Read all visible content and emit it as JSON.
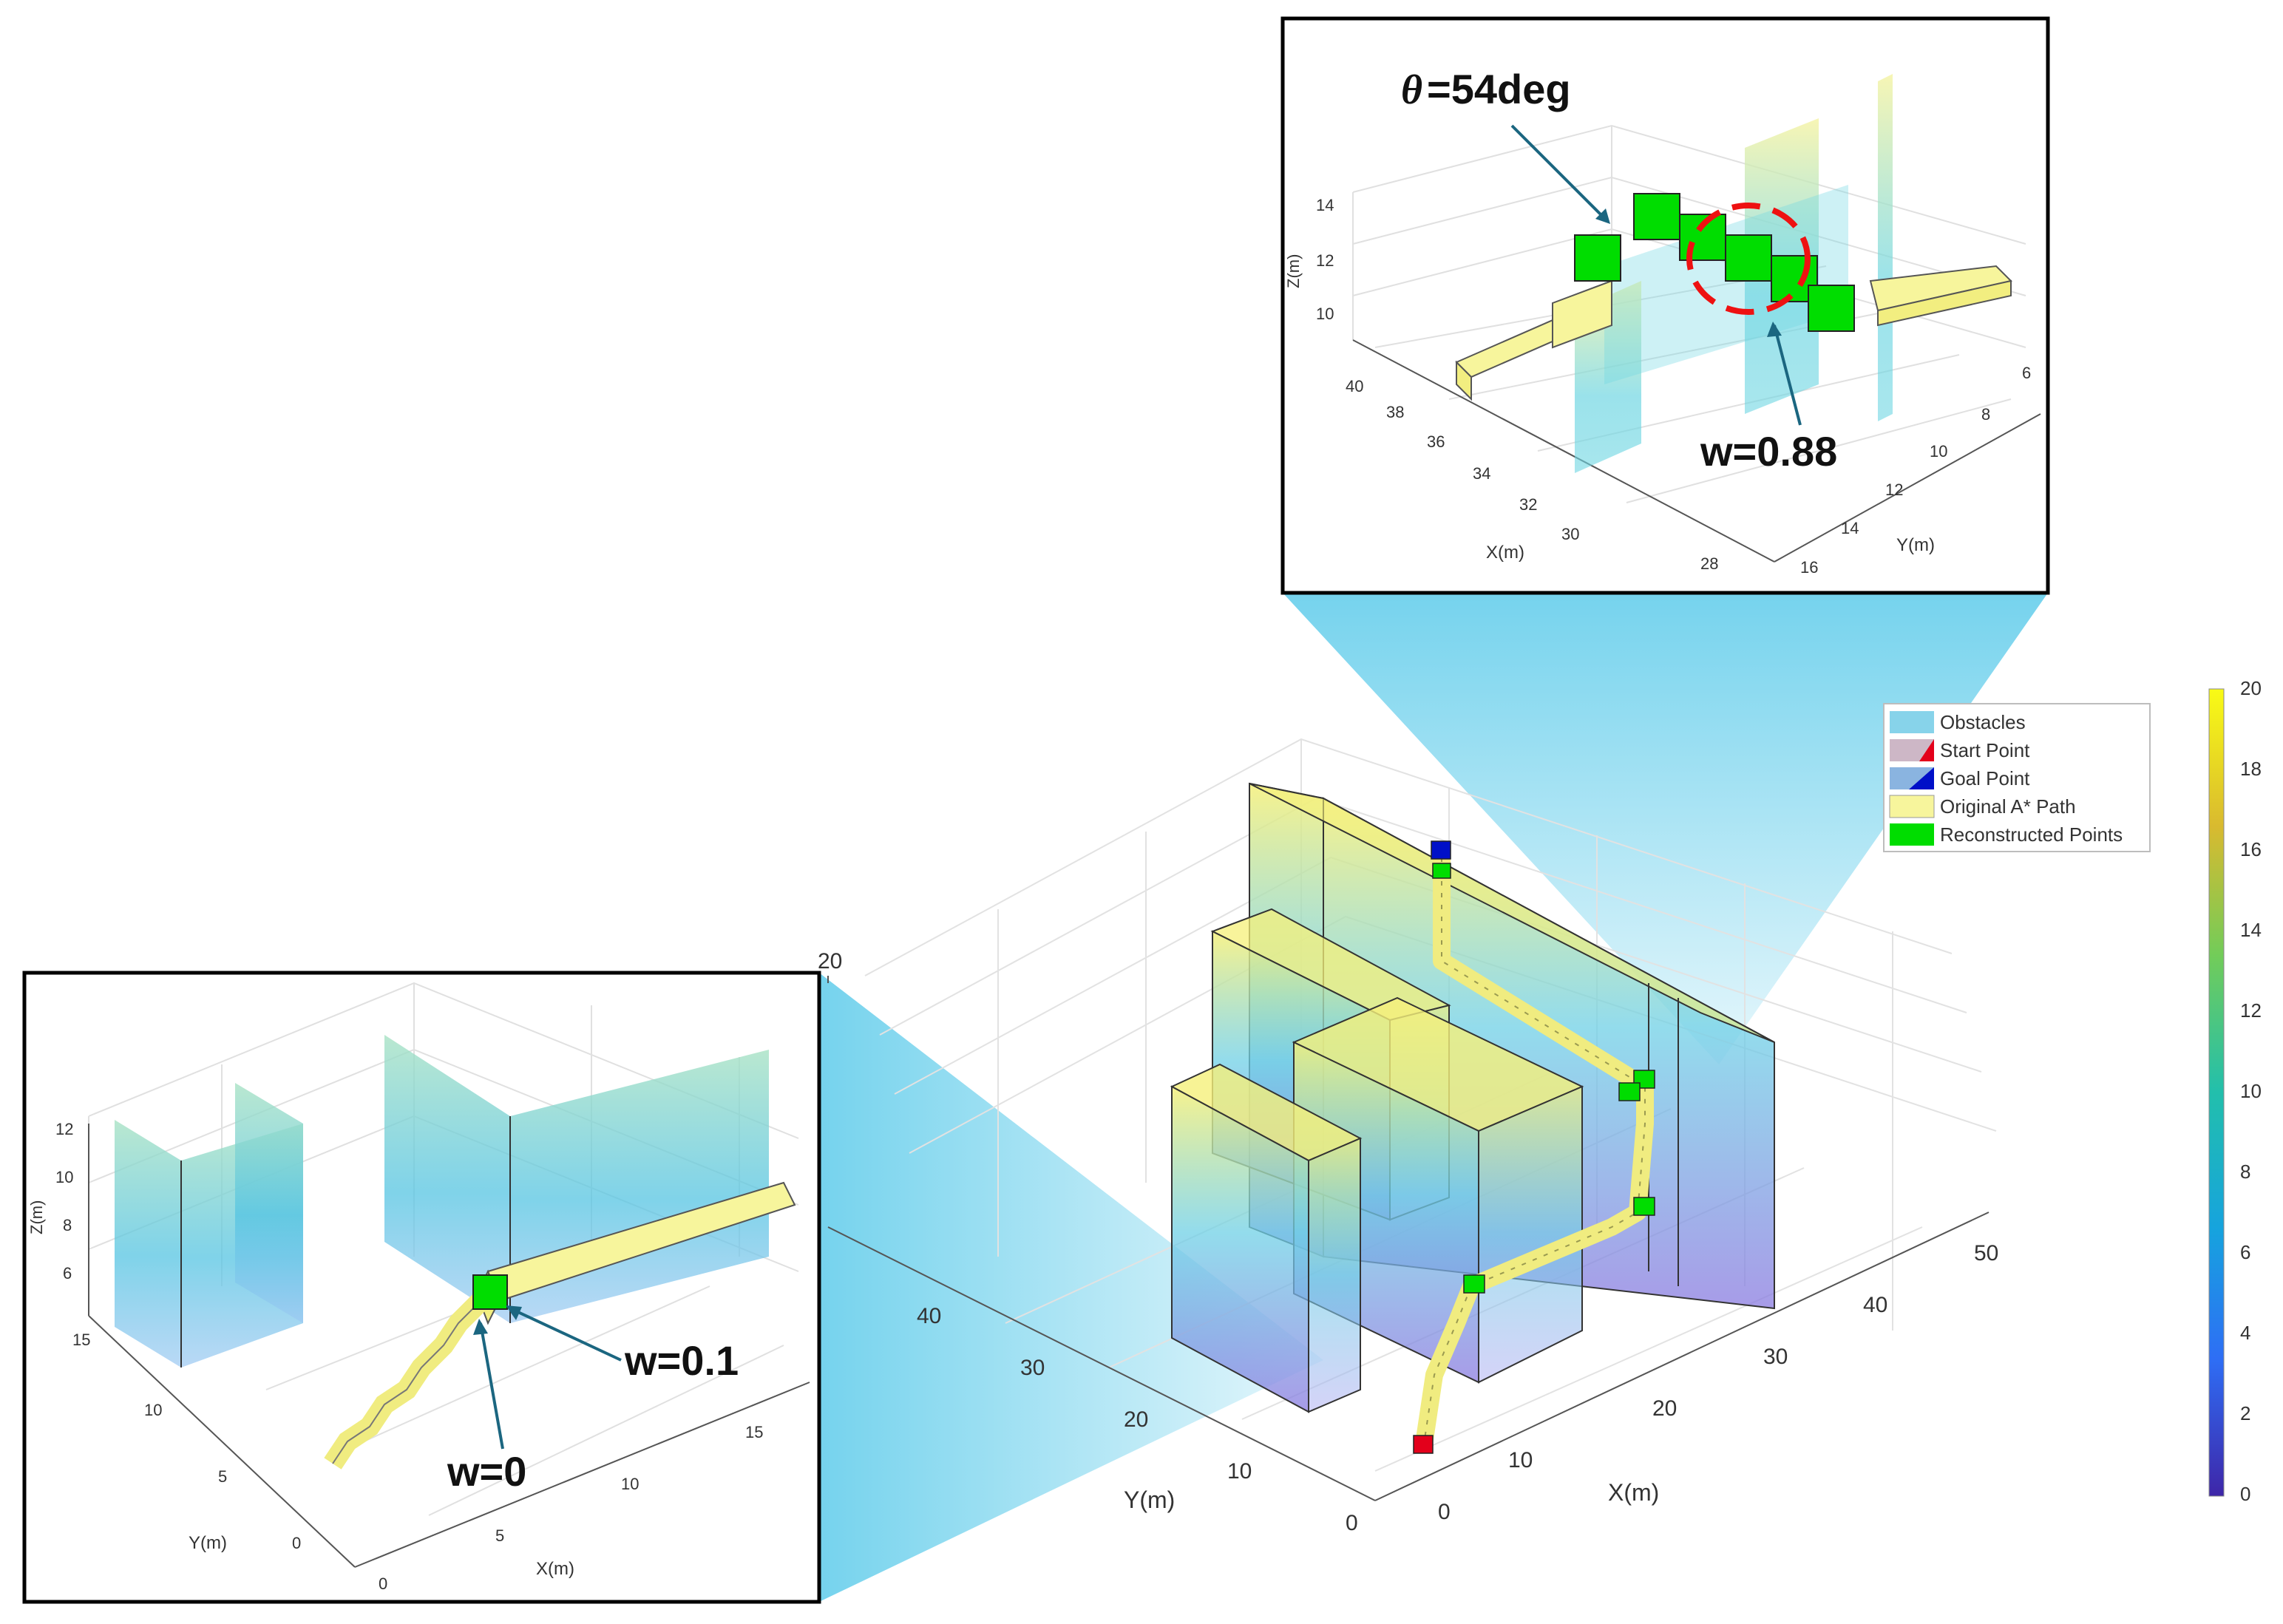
{
  "main_plot": {
    "axis_x_label": "X(m)",
    "axis_y_label": "Y(m)",
    "x_ticks": [
      "0",
      "10",
      "20",
      "30",
      "40",
      "50"
    ],
    "y_ticks": [
      "0",
      "10",
      "20",
      "30",
      "40"
    ],
    "z_tick_top": "20"
  },
  "legend": {
    "items": [
      {
        "label": "Obstacles",
        "color": "#87d3ea"
      },
      {
        "label": "Start Point",
        "color": "#e3001b"
      },
      {
        "label": "Goal Point",
        "color": "#0010c8"
      },
      {
        "label": "Original A* Path",
        "color": "#f7f59c"
      },
      {
        "label": "Reconstructed Points",
        "color": "#00dd00"
      }
    ]
  },
  "colorbar": {
    "ticks": [
      "0",
      "2",
      "4",
      "6",
      "8",
      "10",
      "12",
      "14",
      "16",
      "18",
      "20"
    ],
    "colors": [
      "#3e26a8",
      "#2e6ef5",
      "#16a3de",
      "#22bfac",
      "#72cc59",
      "#d9ba2f",
      "#f9fb15"
    ]
  },
  "inset_top": {
    "theta_label": "θ",
    "theta_text": "=54deg",
    "w_label": "w=0.88",
    "z_label": "Z(m)",
    "z_ticks": [
      "14",
      "12",
      "10"
    ],
    "x_label": "X(m)",
    "x_ticks": [
      "40",
      "38",
      "36",
      "34",
      "32",
      "30",
      "28"
    ],
    "y_label": "Y(m)",
    "y_ticks": [
      "6",
      "8",
      "10",
      "12",
      "14",
      "16"
    ]
  },
  "inset_left": {
    "w_label_1": "w=0.1",
    "w_label_2": "w=0",
    "z_label": "Z(m)",
    "z_ticks": [
      "12",
      "10",
      "8",
      "6"
    ],
    "y_label": "Y(m)",
    "y_ticks": [
      "15",
      "10",
      "5",
      "0"
    ],
    "x_label": "X(m)",
    "x_ticks": [
      "0",
      "5",
      "10",
      "15"
    ]
  },
  "colors": {
    "obstacle_yellow": "#f5f07a",
    "obstacle_cyan": "#6fd0e6",
    "obstacle_purple": "#8a7ae0",
    "path_yellow": "#f7f59c",
    "reconstructed_green": "#00dd00",
    "start_red": "#e3001b",
    "goal_blue": "#0010c8",
    "highlight_red": "#ee1111",
    "arrow": "#1b6680",
    "callout": "#5dcbea"
  }
}
